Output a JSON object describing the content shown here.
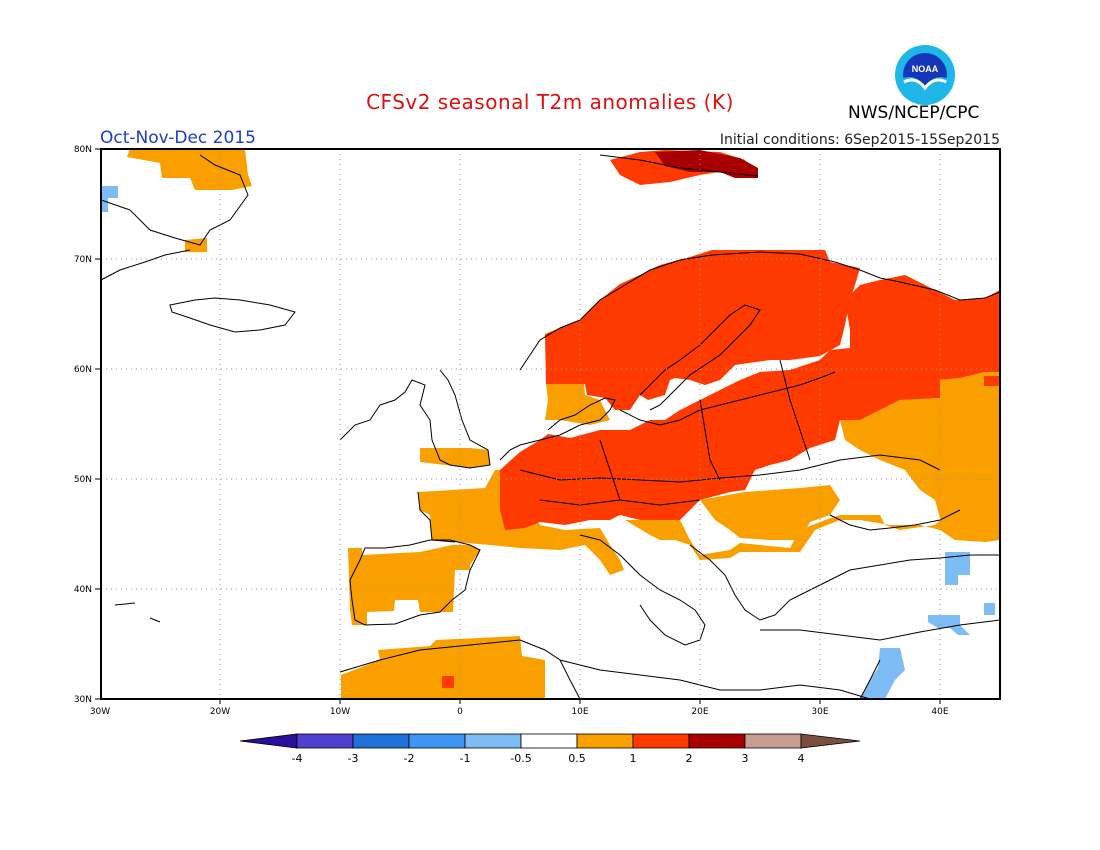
{
  "header": {
    "title": "CFSv2 seasonal T2m anomalies (K)",
    "period": "Oct-Nov-Dec 2015",
    "initial_conditions": "Initial conditions: 6Sep2015-15Sep2015",
    "agency": "NWS/NCEP/CPC",
    "logo_text": "NOAA"
  },
  "colors": {
    "title": "#e01010",
    "period": "#1a3ccc",
    "bins": [
      "#2a0f9a",
      "#4f3fcf",
      "#1f6fd8",
      "#3f95f2",
      "#7ebcf5",
      "#ffffff",
      "#f9a000",
      "#ff3a00",
      "#a80000",
      "#c89e91",
      "#7a4e3d"
    ]
  },
  "map": {
    "lat_labels": [
      "80N",
      "70N",
      "60N",
      "50N",
      "40N",
      "30N"
    ],
    "lon_labels": [
      "30W",
      "20W",
      "10W",
      "0",
      "10E",
      "20E",
      "30E",
      "40E"
    ],
    "lat_values": [
      80,
      70,
      60,
      50,
      40,
      30
    ],
    "lon_values": [
      -30,
      -20,
      -10,
      0,
      10,
      20,
      30,
      40
    ],
    "extent": {
      "lon_min": -30,
      "lon_max": 45,
      "lat_min": 30,
      "lat_max": 80
    }
  },
  "legend": {
    "tick_labels": [
      "-4",
      "-3",
      "-2",
      "-1",
      "-0.5",
      "0.5",
      "1",
      "2",
      "3",
      "4"
    ]
  }
}
